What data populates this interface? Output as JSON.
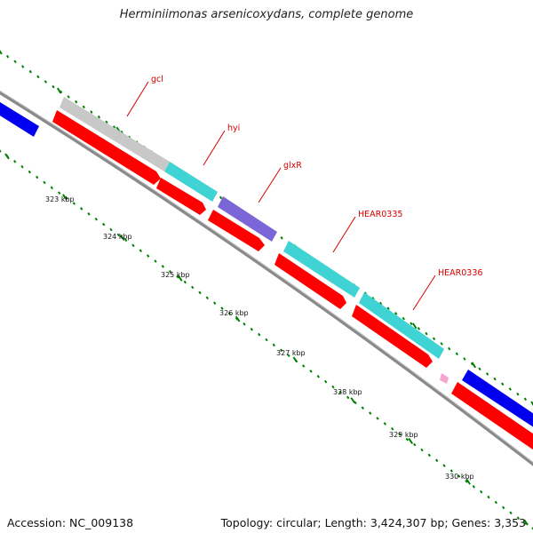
{
  "title": "Herminiimonas arsenicoxydans, complete genome",
  "footer": {
    "accession": "Accession: NC_009138",
    "topology": "Topology: circular; Length: 3,424,307 bp; Genes: 3,353"
  },
  "colors": {
    "cds": "#ff0000",
    "grey_feature": "#c8c8c8",
    "cyan_feature": "#3fd3d3",
    "purple_feature": "#7a66d6",
    "blue_feature": "#0000ee",
    "pink_feature": "#f4a6cf",
    "backbone": "#8a8a8a",
    "dots": "#008000",
    "label": "#d60000"
  },
  "gene_labels": [
    "gcl",
    "hyi",
    "glxR",
    "HEAR0335",
    "HEAR0336"
  ],
  "scale_labels": [
    "323 kbp",
    "324 kbp",
    "325 kbp",
    "326 kbp",
    "327 kbp",
    "328 kbp",
    "329 kbp",
    "330 kbp"
  ]
}
